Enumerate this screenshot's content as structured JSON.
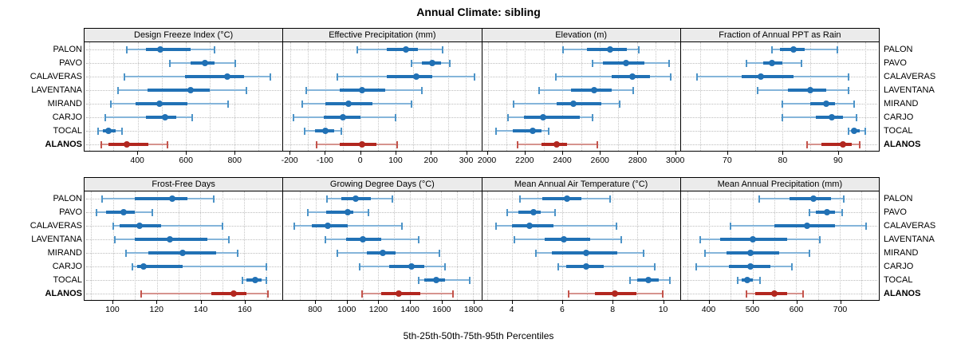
{
  "title": "Annual Climate: sibling",
  "xlabel": "5th-25th-50th-75th-95th Percentiles",
  "colors": {
    "normal_main": "#2171B5",
    "normal_light": "#85B5DA",
    "normal_cap": "#4D94C8",
    "highlight_main": "#B2271F",
    "highlight_light": "#D6938E",
    "highlight_cap": "#C4544C",
    "strip_bg": "#EBEBEB",
    "grid": "#C6C6C6",
    "border": "#000000"
  },
  "chart_data": {
    "type": "interval",
    "note": "Trellis percentile interval plot; each row shows 5th-25th-50th-75th-95th percentiles",
    "percentile_labels": [
      "p5",
      "p25",
      "p50",
      "p75",
      "p95"
    ],
    "rows": [
      "PALON",
      "PAVO",
      "CALAVERAS",
      "LAVENTANA",
      "MIRAND",
      "CARJO",
      "TOCAL",
      "ALANOS"
    ],
    "highlight_row": "ALANOS",
    "legend_position": "none",
    "grid": true,
    "panels": [
      {
        "title": "Design Freeze Index (°C)",
        "domain": [
          180,
          1000
        ],
        "ticks": [
          400,
          600,
          800
        ],
        "grid_step": 100,
        "data": [
          [
            355,
            435,
            495,
            620,
            720
          ],
          [
            535,
            620,
            680,
            720,
            805
          ],
          [
            345,
            595,
            770,
            840,
            950
          ],
          [
            320,
            440,
            620,
            700,
            850
          ],
          [
            290,
            390,
            490,
            605,
            775
          ],
          [
            265,
            435,
            515,
            560,
            625
          ],
          [
            235,
            255,
            280,
            310,
            335
          ],
          [
            250,
            280,
            355,
            445,
            525
          ]
        ]
      },
      {
        "title": "Effective Precipitation (mm)",
        "domain": [
          -220,
          345
        ],
        "ticks": [
          -200,
          -100,
          0,
          100,
          200,
          300
        ],
        "grid_step": 50,
        "data": [
          [
            -10,
            75,
            130,
            165,
            235
          ],
          [
            145,
            175,
            205,
            230,
            255
          ],
          [
            -65,
            75,
            160,
            205,
            325
          ],
          [
            -155,
            -60,
            5,
            70,
            175
          ],
          [
            -165,
            -100,
            -35,
            35,
            145
          ],
          [
            -190,
            -105,
            -50,
            0,
            100
          ],
          [
            -160,
            -130,
            -100,
            -75,
            -55
          ],
          [
            -125,
            -60,
            5,
            45,
            105
          ]
        ]
      },
      {
        "title": "Elevation (m)",
        "domain": [
          1970,
          3030
        ],
        "ticks": [
          2000,
          2200,
          2400,
          2600,
          2800,
          3000
        ],
        "grid_step": 100,
        "data": [
          [
            2405,
            2530,
            2655,
            2745,
            2810
          ],
          [
            2560,
            2615,
            2740,
            2840,
            2970
          ],
          [
            2365,
            2665,
            2775,
            2870,
            2980
          ],
          [
            2275,
            2445,
            2570,
            2665,
            2780
          ],
          [
            2140,
            2370,
            2460,
            2610,
            2705
          ],
          [
            2110,
            2195,
            2295,
            2495,
            2560
          ],
          [
            2045,
            2135,
            2240,
            2290,
            2325
          ],
          [
            2160,
            2290,
            2370,
            2425,
            2585
          ]
        ]
      },
      {
        "title": "Fraction of Annual PPT as Rain",
        "domain": [
          61.5,
          97.5
        ],
        "ticks": [
          70,
          80,
          90
        ],
        "grid_step": 5,
        "data": [
          [
            78,
            79.5,
            82,
            84,
            90
          ],
          [
            73.5,
            76.5,
            78,
            80,
            83.5
          ],
          [
            64.5,
            72.5,
            76,
            82,
            92
          ],
          [
            75.5,
            81,
            85,
            88,
            92
          ],
          [
            80,
            85,
            88,
            89.5,
            93
          ],
          [
            80,
            86,
            89,
            91,
            93.5
          ],
          [
            92,
            92.5,
            93,
            94,
            95
          ],
          [
            84.5,
            87,
            91,
            92.5,
            94
          ]
        ]
      },
      {
        "title": "Frost-Free Days",
        "domain": [
          87,
          177.5
        ],
        "ticks": [
          100,
          120,
          140,
          160
        ],
        "grid_step": 10,
        "data": [
          [
            95,
            110,
            127,
            134,
            146
          ],
          [
            92.5,
            97,
            105,
            110,
            118
          ],
          [
            100,
            103,
            112,
            122,
            150
          ],
          [
            101,
            110,
            126,
            143,
            153
          ],
          [
            106,
            116,
            132,
            147,
            157
          ],
          [
            109,
            111,
            114,
            132,
            170
          ],
          [
            159,
            161,
            165,
            168,
            170
          ],
          [
            113,
            145,
            155,
            161,
            171
          ]
        ]
      },
      {
        "title": "Growing Degree Days (°C)",
        "domain": [
          595,
          1855
        ],
        "ticks": [
          800,
          1000,
          1200,
          1400,
          1600,
          1800
        ],
        "grid_step": 100,
        "data": [
          [
            875,
            965,
            1055,
            1150,
            1290
          ],
          [
            750,
            870,
            1005,
            1040,
            1135
          ],
          [
            665,
            775,
            880,
            1005,
            1350
          ],
          [
            865,
            995,
            1100,
            1220,
            1455
          ],
          [
            940,
            1125,
            1230,
            1310,
            1590
          ],
          [
            1080,
            1270,
            1410,
            1490,
            1625
          ],
          [
            1455,
            1490,
            1570,
            1625,
            1780
          ],
          [
            1095,
            1220,
            1330,
            1465,
            1675
          ]
        ]
      },
      {
        "title": "Mean Annual Air Temperature (°C)",
        "domain": [
          2.8,
          10.7
        ],
        "ticks": [
          4,
          6,
          8,
          10
        ],
        "grid_step": 1,
        "data": [
          [
            4.3,
            5.2,
            6.2,
            6.75,
            7.9
          ],
          [
            3.8,
            4.25,
            4.85,
            5.15,
            5.7
          ],
          [
            3.35,
            4.0,
            4.7,
            5.65,
            8.15
          ],
          [
            4.1,
            5.3,
            6.05,
            7.1,
            8.35
          ],
          [
            4.95,
            5.6,
            6.95,
            8.2,
            9.25
          ],
          [
            5.85,
            6.15,
            6.95,
            7.65,
            9.7
          ],
          [
            8.7,
            9.0,
            9.45,
            9.85,
            10.3
          ],
          [
            6.25,
            7.3,
            8.1,
            8.95,
            10.0
          ]
        ]
      },
      {
        "title": "Mean Annual Precipitation (mm)",
        "domain": [
          335,
          790
        ],
        "ticks": [
          400,
          500,
          600,
          700
        ],
        "grid_step": 50,
        "data": [
          [
            515,
            585,
            640,
            680,
            710
          ],
          [
            630,
            645,
            670,
            690,
            705
          ],
          [
            450,
            550,
            625,
            690,
            760
          ],
          [
            380,
            425,
            500,
            580,
            655
          ],
          [
            390,
            440,
            495,
            560,
            630
          ],
          [
            370,
            445,
            495,
            540,
            590
          ],
          [
            465,
            475,
            487,
            500,
            517
          ],
          [
            485,
            505,
            550,
            580,
            615
          ]
        ]
      }
    ]
  }
}
